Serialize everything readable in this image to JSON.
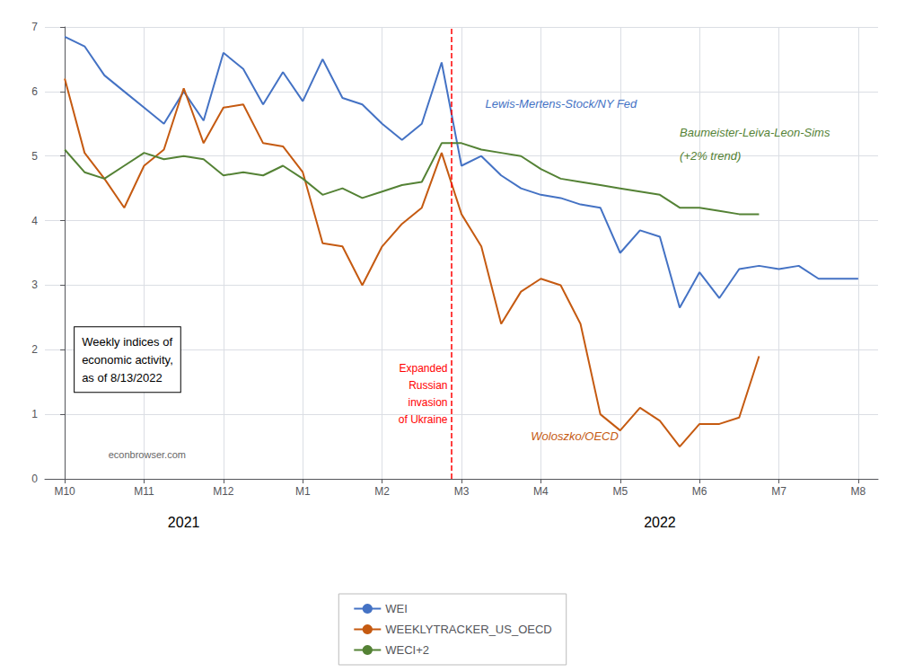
{
  "chart_data": {
    "type": "line",
    "categories": [
      "M10",
      null,
      null,
      null,
      "M11",
      null,
      null,
      null,
      "M12",
      null,
      null,
      null,
      "M1",
      null,
      null,
      null,
      "M2",
      null,
      null,
      null,
      "M3",
      null,
      null,
      null,
      "M4",
      null,
      null,
      null,
      "M5",
      null,
      null,
      null,
      "M6",
      null,
      null,
      null,
      "M7",
      null,
      null,
      null,
      "M8"
    ],
    "series": [
      {
        "name": "WEI",
        "color": "#4472c4",
        "values": [
          6.85,
          6.7,
          6.25,
          6.0,
          5.75,
          5.5,
          6.0,
          5.55,
          6.6,
          6.35,
          5.8,
          6.3,
          5.85,
          6.5,
          5.9,
          5.8,
          5.5,
          5.25,
          5.5,
          6.45,
          4.85,
          5.0,
          4.7,
          4.5,
          4.4,
          4.35,
          4.25,
          4.2,
          3.5,
          3.85,
          3.75,
          2.65,
          3.2,
          2.8,
          3.25,
          3.3,
          3.25,
          3.3,
          3.1,
          3.1,
          3.1
        ]
      },
      {
        "name": "WEEKLYTRACKER_US_OECD",
        "color": "#c55a11",
        "values": [
          6.2,
          5.05,
          4.65,
          4.2,
          4.85,
          5.1,
          6.05,
          5.2,
          5.75,
          5.8,
          5.2,
          5.15,
          4.75,
          3.65,
          3.6,
          3.0,
          3.6,
          3.95,
          4.2,
          5.05,
          4.1,
          3.6,
          2.4,
          2.9,
          3.1,
          3.0,
          2.4,
          1.0,
          0.75,
          1.1,
          0.9,
          0.5,
          0.85,
          0.85,
          0.95,
          1.9,
          null,
          null,
          null,
          null,
          null
        ]
      },
      {
        "name": "WECI+2",
        "color": "#548235",
        "values": [
          5.1,
          4.75,
          4.65,
          4.85,
          5.05,
          4.95,
          5.0,
          4.95,
          4.7,
          4.75,
          4.7,
          4.85,
          4.65,
          4.4,
          4.5,
          4.35,
          4.45,
          4.55,
          4.6,
          5.2,
          5.2,
          5.1,
          5.05,
          5.0,
          4.8,
          4.65,
          4.6,
          4.55,
          4.5,
          4.45,
          4.4,
          4.2,
          4.2,
          4.15,
          4.1,
          4.1,
          null,
          null,
          null,
          null,
          null
        ]
      }
    ],
    "ylim": [
      0,
      7
    ],
    "yticks": [
      0,
      1,
      2,
      3,
      4,
      5,
      6,
      7
    ],
    "grid": true,
    "legend": "bottom",
    "vlines": [
      {
        "x": 19.5,
        "color": "#ff0000",
        "line_style": "dashed"
      }
    ],
    "annotations": [
      {
        "text": "Lewis-Mertens-Stock/NY Fed",
        "color": "#4472c4"
      },
      {
        "text": "Baumeister-Leiva-Leon-Sims",
        "color": "#548235"
      },
      {
        "text": "(+2% trend)",
        "color": "#548235"
      },
      {
        "text": "Woloszko/OECD",
        "color": "#c55a11"
      },
      {
        "text": "Expanded\nRussian\ninvasion\nof Ukraine",
        "color": "red"
      },
      {
        "text": "Weekly indices of\neconomic activity,\nas of 8/13/2022",
        "color": "black"
      },
      {
        "text": "econbrowser.com",
        "color": "#666666"
      },
      {
        "text": "2021"
      },
      {
        "text": "2022"
      }
    ]
  }
}
